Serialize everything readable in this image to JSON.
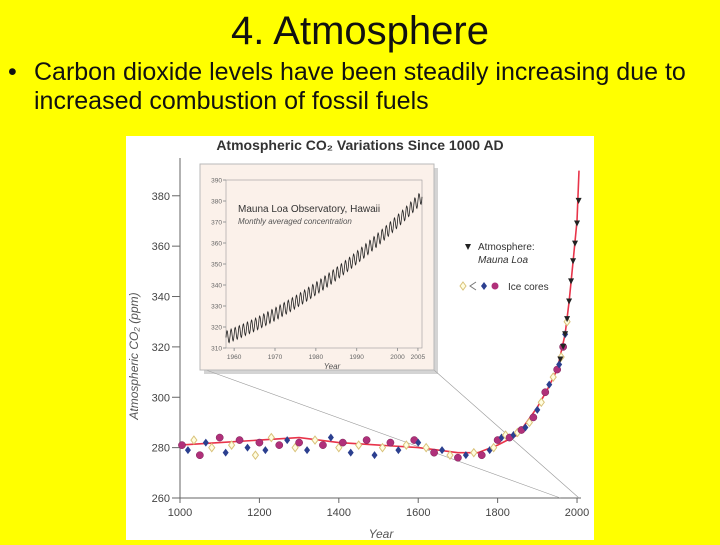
{
  "slide": {
    "title": "4. Atmosphere",
    "bullet": "Carbon dioxide levels have been steadily increasing due to increased combustion of fossil fuels"
  },
  "chart_data": {
    "type": "scatter",
    "title": "Atmospheric CO₂ Variations Since 1000 AD",
    "xlabel": "Year",
    "ylabel": "Atmospheric CO₂ (ppm)",
    "xlim": [
      1000,
      2010
    ],
    "ylim": [
      260,
      395
    ],
    "xticks": [
      1000,
      1200,
      1400,
      1600,
      1800,
      2000
    ],
    "yticks": [
      260,
      280,
      300,
      320,
      340,
      360,
      380
    ],
    "legend": {
      "position": "right",
      "entries": [
        {
          "marker": "triangle-down",
          "label": "Atmosphere:",
          "sublabel": "Mauna Loa"
        },
        {
          "marker": "mixed",
          "label": "Ice cores"
        }
      ]
    },
    "colors": {
      "trend": "#e8344a",
      "ice_blue": "#2b3f8f",
      "ice_magenta": "#b0307a",
      "ice_hollow": "#d9c27a",
      "atmos": "#222222"
    },
    "series": [
      {
        "name": "Ice cores",
        "x": [
          1005,
          1020,
          1035,
          1050,
          1065,
          1080,
          1100,
          1115,
          1130,
          1150,
          1170,
          1190,
          1200,
          1215,
          1230,
          1250,
          1270,
          1290,
          1300,
          1320,
          1340,
          1360,
          1380,
          1400,
          1410,
          1430,
          1450,
          1470,
          1490,
          1510,
          1530,
          1550,
          1570,
          1590,
          1600,
          1620,
          1640,
          1660,
          1680,
          1700,
          1720,
          1740,
          1760,
          1780,
          1790,
          1800,
          1810,
          1820,
          1830,
          1840,
          1850,
          1860,
          1870,
          1880,
          1890,
          1900,
          1910,
          1920,
          1930,
          1940,
          1950,
          1955,
          1960,
          1965,
          1970,
          1975
        ],
        "y": [
          281,
          279,
          283,
          277,
          282,
          280,
          284,
          278,
          281,
          283,
          280,
          277,
          282,
          279,
          284,
          281,
          283,
          280,
          282,
          279,
          283,
          281,
          284,
          280,
          282,
          278,
          281,
          283,
          277,
          280,
          282,
          279,
          281,
          283,
          282,
          280,
          278,
          279,
          277,
          276,
          277,
          278,
          277,
          279,
          280,
          283,
          284,
          285,
          284,
          285,
          286,
          287,
          288,
          290,
          292,
          295,
          298,
          302,
          305,
          308,
          311,
          313,
          316,
          320,
          325,
          330
        ]
      },
      {
        "name": "Atmosphere: Mauna Loa",
        "x": [
          1958,
          1965,
          1970,
          1975,
          1980,
          1985,
          1990,
          1995,
          2000,
          2004
        ],
        "y": [
          315,
          320,
          325,
          331,
          338,
          346,
          354,
          361,
          369,
          378
        ]
      },
      {
        "name": "Trend",
        "x": [
          1000,
          1100,
          1200,
          1300,
          1400,
          1500,
          1600,
          1650,
          1700,
          1750,
          1800,
          1850,
          1900,
          1925,
          1950,
          1970,
          1980,
          1990,
          2000,
          2005
        ],
        "y": [
          281,
          282,
          283,
          284,
          282,
          281,
          280,
          279,
          278,
          278,
          281,
          285,
          296,
          303,
          311,
          325,
          338,
          354,
          370,
          390
        ]
      }
    ],
    "inset": {
      "title": "Mauna Loa Observatory, Hawaii",
      "subtitle": "Monthly averaged concentration",
      "xlabel": "Year",
      "xlim": [
        1958,
        2006
      ],
      "ylim": [
        310,
        390
      ],
      "xticks": [
        1960,
        1970,
        1980,
        1990,
        2000,
        2005
      ],
      "xtick_labels": [
        "1960",
        "1970",
        "1980",
        "1990",
        "2000",
        "2005"
      ],
      "yticks": [
        310,
        320,
        330,
        340,
        350,
        360,
        370,
        380,
        390
      ],
      "trend": {
        "start_year": 1958,
        "end_year": 2006,
        "start_ppm": 315,
        "end_ppm": 382,
        "seasonal_amplitude": 3
      }
    }
  }
}
